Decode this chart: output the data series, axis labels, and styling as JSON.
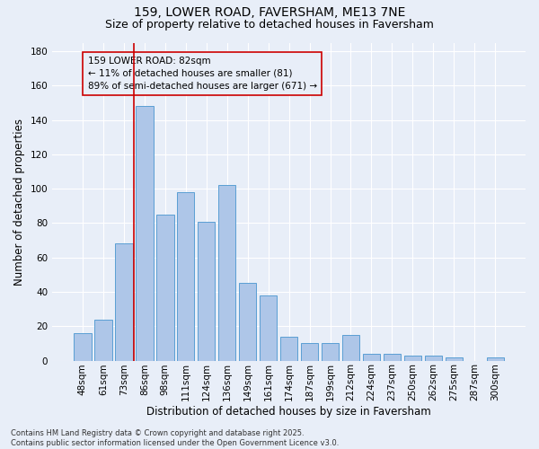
{
  "title1": "159, LOWER ROAD, FAVERSHAM, ME13 7NE",
  "title2": "Size of property relative to detached houses in Faversham",
  "xlabel": "Distribution of detached houses by size in Faversham",
  "ylabel": "Number of detached properties",
  "footnote": "Contains HM Land Registry data © Crown copyright and database right 2025.\nContains public sector information licensed under the Open Government Licence v3.0.",
  "bar_labels": [
    "48sqm",
    "61sqm",
    "73sqm",
    "86sqm",
    "98sqm",
    "111sqm",
    "124sqm",
    "136sqm",
    "149sqm",
    "161sqm",
    "174sqm",
    "187sqm",
    "199sqm",
    "212sqm",
    "224sqm",
    "237sqm",
    "250sqm",
    "262sqm",
    "275sqm",
    "287sqm",
    "300sqm"
  ],
  "bar_values": [
    16,
    24,
    68,
    148,
    85,
    98,
    81,
    102,
    45,
    38,
    14,
    10,
    10,
    15,
    4,
    4,
    3,
    3,
    2,
    0,
    2
  ],
  "bar_color": "#aec6e8",
  "bar_edge_color": "#5a9fd4",
  "background_color": "#e8eef8",
  "grid_color": "#ffffff",
  "vline_x": 2.5,
  "vline_color": "#cc0000",
  "annotation_text": "159 LOWER ROAD: 82sqm\n← 11% of detached houses are smaller (81)\n89% of semi-detached houses are larger (671) →",
  "annotation_box_color": "#cc0000",
  "ylim": [
    0,
    185
  ],
  "yticks": [
    0,
    20,
    40,
    60,
    80,
    100,
    120,
    140,
    160,
    180
  ],
  "title_fontsize": 10,
  "subtitle_fontsize": 9,
  "axis_label_fontsize": 8.5,
  "tick_fontsize": 7.5,
  "annotation_fontsize": 7.5,
  "footnote_fontsize": 6.0
}
